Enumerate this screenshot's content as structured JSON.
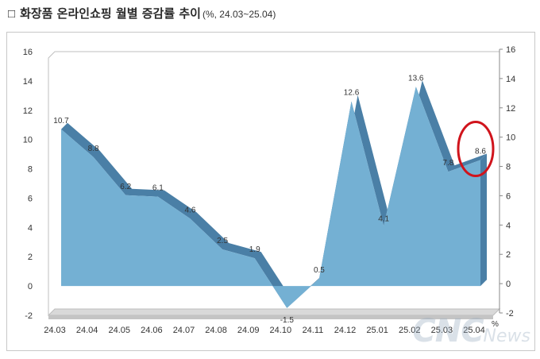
{
  "title": {
    "box": "□",
    "main": "화장품 온라인쇼핑 월별 증감률 추이",
    "sub": "(%, 24.03~25.04)"
  },
  "watermark": {
    "brand": "CNC",
    "suffix": "News"
  },
  "chart_data": {
    "type": "area",
    "categories": [
      "24.03",
      "24.04",
      "24.05",
      "24.06",
      "24.07",
      "24.08",
      "24.09",
      "24.10",
      "24.11",
      "24.12",
      "25.01",
      "25.02",
      "25.03",
      "25.04"
    ],
    "values": [
      10.7,
      8.8,
      6.2,
      6.1,
      4.6,
      2.5,
      1.9,
      -1.5,
      0.5,
      12.6,
      4.1,
      13.6,
      7.8,
      8.6
    ],
    "data_labels": [
      "10.7",
      "8.8",
      "6.2",
      "6.1",
      "4.6",
      "2.5",
      "1.9",
      "-1.5",
      "0.5",
      "12.6",
      "4.1",
      "13.6",
      "7.8",
      "8.6"
    ],
    "ylim": [
      -2,
      16
    ],
    "yticks": [
      "-2",
      "0",
      "2",
      "4",
      "6",
      "8",
      "10",
      "12",
      "14",
      "16"
    ],
    "y2ticks": [
      "-2",
      "0",
      "2",
      "4",
      "6",
      "8",
      "10",
      "12",
      "14",
      "16"
    ],
    "x_unit_label": "%",
    "grid": false,
    "highlight_index": 13,
    "colors": {
      "fill": "#74b0d3",
      "edge": "#4a7fa6",
      "floor": "#d9d9d9",
      "highlight": "#d0141c"
    }
  }
}
